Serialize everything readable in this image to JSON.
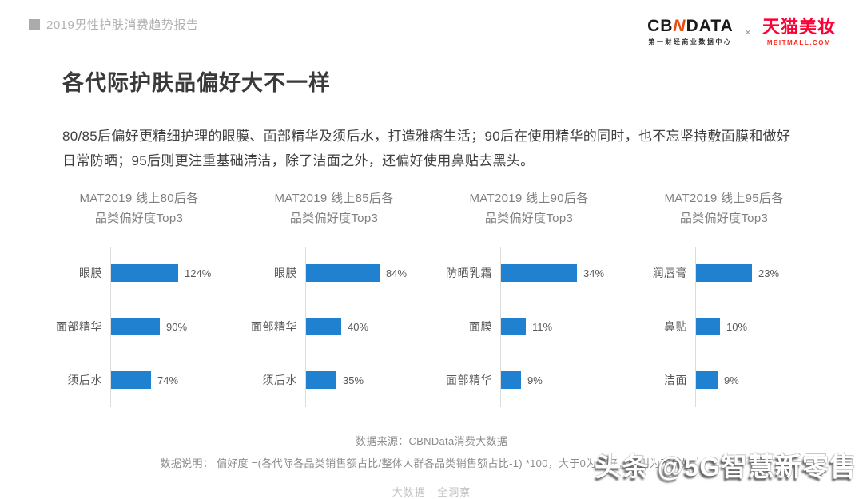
{
  "page": {
    "report_tag": "2019男性护肤消费趋势报告",
    "title": "各代际护肤品偏好大不一样",
    "intro": "80/85后偏好更精细护理的眼膜、面部精华及须后水，打造雅痞生活；90后在使用精华的同时，也不忘坚持敷面膜和做好日常防晒；95后则更注重基础清洁，除了洁面之外，还偏好使用鼻贴去黑头。"
  },
  "header": {
    "cbndata": {
      "wordmark_left": "CB",
      "wordmark_n": "N",
      "wordmark_right": "DATA",
      "subtitle": "第一财经商业数据中心"
    },
    "separator": "×",
    "tmall": {
      "name": "天猫美妆",
      "domain": "MEITMALL.COM"
    }
  },
  "chart_data": [
    {
      "id": "80hou",
      "type": "bar",
      "orientation": "horizontal",
      "title": "MAT2019 线上80后各品类偏好度Top3",
      "title_lines": [
        "MAT2019 线上80后各",
        "品类偏好度Top3"
      ],
      "categories": [
        "眼膜",
        "面部精华",
        "须后水"
      ],
      "values": [
        124,
        90,
        74
      ],
      "value_labels": [
        "124%",
        "90%",
        "74%"
      ],
      "unit": "%",
      "bar_color": "#2081D0",
      "grid": false,
      "legend": false
    },
    {
      "id": "85hou",
      "type": "bar",
      "orientation": "horizontal",
      "title": "MAT2019 线上85后各品类偏好度Top3",
      "title_lines": [
        "MAT2019 线上85后各",
        "品类偏好度Top3"
      ],
      "categories": [
        "眼膜",
        "面部精华",
        "须后水"
      ],
      "values": [
        84,
        40,
        35
      ],
      "value_labels": [
        "84%",
        "40%",
        "35%"
      ],
      "unit": "%",
      "bar_color": "#2081D0",
      "grid": false,
      "legend": false
    },
    {
      "id": "90hou",
      "type": "bar",
      "orientation": "horizontal",
      "title": "MAT2019 线上90后各品类偏好度Top3",
      "title_lines": [
        "MAT2019 线上90后各",
        "品类偏好度Top3"
      ],
      "categories": [
        "防晒乳霜",
        "面膜",
        "面部精华"
      ],
      "values": [
        34,
        11,
        9
      ],
      "value_labels": [
        "34%",
        "11%",
        "9%"
      ],
      "unit": "%",
      "bar_color": "#2081D0",
      "grid": false,
      "legend": false
    },
    {
      "id": "95hou",
      "type": "bar",
      "orientation": "horizontal",
      "title": "MAT2019 线上95后各品类偏好度Top3",
      "title_lines": [
        "MAT2019 线上95后各",
        "品类偏好度Top3"
      ],
      "categories": [
        "润唇膏",
        "鼻贴",
        "洁面"
      ],
      "values": [
        23,
        10,
        9
      ],
      "value_labels": [
        "23%",
        "10%",
        "9%"
      ],
      "unit": "%",
      "bar_color": "#2081D0",
      "grid": false,
      "legend": false
    }
  ],
  "footer": {
    "source": "数据来源：CBNData消费大数据",
    "note": "数据说明： 偏好度 =(各代际各品类销售额占比/整体人群各品类销售额占比-1) *100，大于0为偏好，否则为不偏好。",
    "caption": "大数据 · 全洞察"
  },
  "watermark": "头条 @5G智慧新零售",
  "colors": {
    "bar_blue": "#2081D0",
    "tmall_red": "#FF0036",
    "cbn_accent": "#E8490F",
    "axis_line": "#DCDCDC",
    "muted_gray": "#8C8C8C"
  }
}
